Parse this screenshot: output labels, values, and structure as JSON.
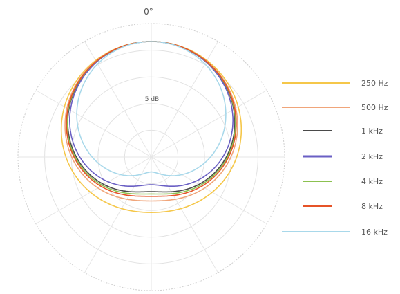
{
  "chart_data": {
    "type": "polar",
    "title": "",
    "angle_label": "0°",
    "radial_label": "5 dB",
    "grid": true,
    "legend_position": "right",
    "series": [
      {
        "name": "250 Hz",
        "color": "#f5c74a",
        "rear_lobe": 0.48
      },
      {
        "name": "500 Hz",
        "color": "#f0a57a",
        "rear_lobe": 0.38
      },
      {
        "name": "1 kHz",
        "color": "#4a4a4a",
        "rear_lobe": 0.3
      },
      {
        "name": "2 kHz",
        "color": "#6a5fc4",
        "rear_lobe": 0.24
      },
      {
        "name": "4 kHz",
        "color": "#8cc150",
        "rear_lobe": 0.32
      },
      {
        "name": "8 kHz",
        "color": "#e65328",
        "rear_lobe": 0.34
      },
      {
        "name": "16 kHz",
        "color": "#a8d8ea",
        "rear_lobe": 0.22
      }
    ]
  }
}
